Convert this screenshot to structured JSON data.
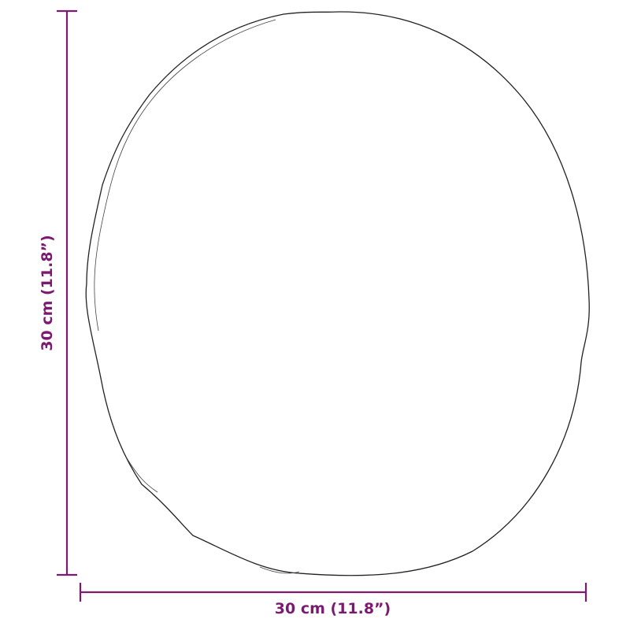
{
  "dimensions": {
    "width_label": "30 cm (11.8”)",
    "height_label": "30 cm (11.8”)"
  },
  "colors": {
    "dimension_line": "#7b1a70",
    "outline": "#222222"
  },
  "object": "round-mirror-outline"
}
